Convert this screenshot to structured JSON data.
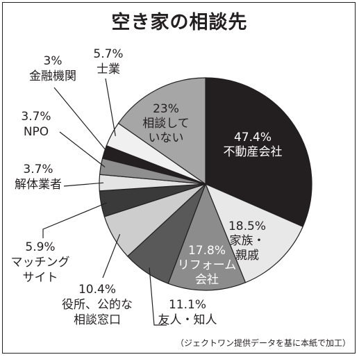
{
  "chart_data": {
    "type": "pie",
    "title": "空き家の相談先",
    "source": "（ジェクトワン提供データを基に本紙で加工）",
    "slices": [
      {
        "label": "不動産会社",
        "value": 47.4,
        "pct": "47.4%",
        "fill": "#231f20",
        "text": "#ffffff",
        "inside": true
      },
      {
        "label": "家族・親戚",
        "value": 18.5,
        "pct": "18.5%",
        "fill": "#e8e8e8",
        "text": "#231f20",
        "inside": true
      },
      {
        "label": "リフォーム会社",
        "value": 17.8,
        "pct": "17.8%",
        "fill": "#8c8c8c",
        "text": "#ffffff",
        "inside": true
      },
      {
        "label": "友人・知人",
        "value": 11.1,
        "pct": "11.1%",
        "fill": "#595959",
        "text": "#231f20",
        "inside": false
      },
      {
        "label": "役所、公的な相談窓口",
        "value": 10.4,
        "pct": "10.4%",
        "fill": "#cdcdcd",
        "text": "#231f20",
        "inside": false
      },
      {
        "label": "マッチングサイト",
        "value": 5.9,
        "pct": "5.9%",
        "fill": "#3a3a3a",
        "text": "#231f20",
        "inside": false
      },
      {
        "label": "解体業者",
        "value": 3.7,
        "pct": "3.7%",
        "fill": "#e4e4e4",
        "text": "#231f20",
        "inside": false
      },
      {
        "label": "NPO",
        "value": 3.7,
        "pct": "3.7%",
        "fill": "#8f8f8f",
        "text": "#231f20",
        "inside": false
      },
      {
        "label": "金融機関",
        "value": 3,
        "pct": "3%",
        "fill": "#231f20",
        "text": "#231f20",
        "inside": false
      },
      {
        "label": "士業",
        "value": 5.7,
        "pct": "5.7%",
        "fill": "#f0f0f0",
        "text": "#231f20",
        "inside": false
      },
      {
        "label": "相談していない",
        "value": 23,
        "pct": "23%",
        "fill": "#a6a6a6",
        "text": "#231f20",
        "inside": true
      }
    ]
  }
}
